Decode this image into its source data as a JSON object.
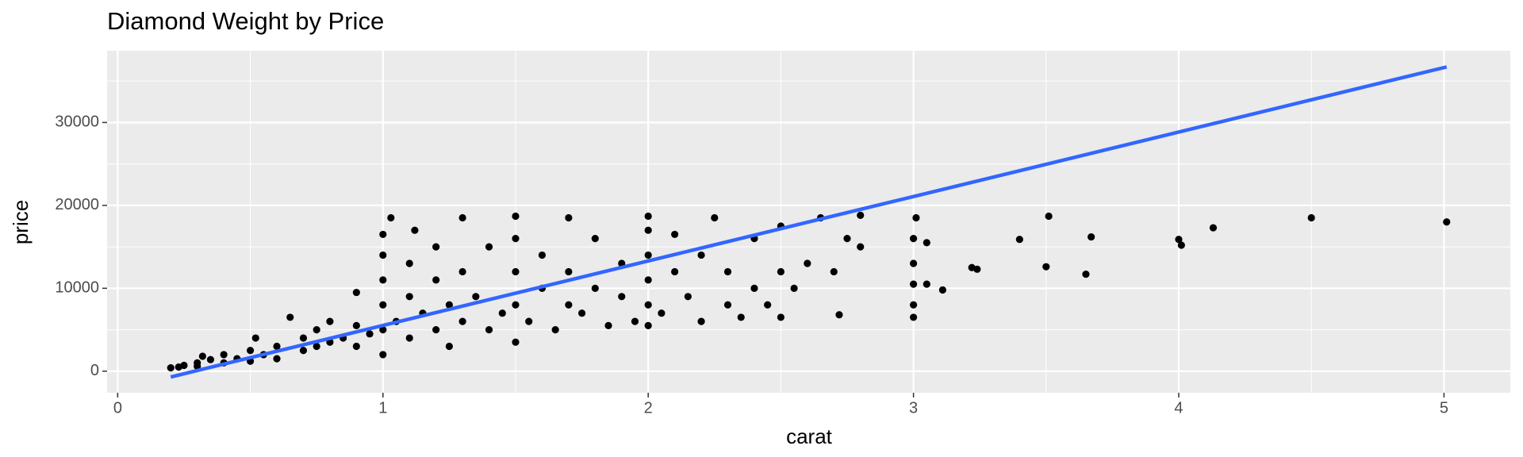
{
  "chart_data": {
    "type": "scatter",
    "title": "Diamond Weight by Price",
    "x_label": "carat",
    "y_label": "price",
    "x": [
      0.2,
      0.23,
      0.25,
      0.3,
      0.3,
      0.32,
      0.35,
      0.4,
      0.4,
      0.45,
      0.5,
      0.5,
      0.52,
      0.55,
      0.6,
      0.6,
      0.65,
      0.7,
      0.7,
      0.75,
      0.75,
      0.8,
      0.8,
      0.85,
      0.9,
      0.9,
      0.9,
      0.95,
      1.0,
      1.0,
      1.0,
      1.0,
      1.0,
      1.0,
      1.03,
      1.05,
      1.1,
      1.1,
      1.1,
      1.12,
      1.15,
      1.2,
      1.2,
      1.2,
      1.25,
      1.25,
      1.3,
      1.3,
      1.3,
      1.35,
      1.4,
      1.4,
      1.45,
      1.5,
      1.5,
      1.5,
      1.5,
      1.5,
      1.55,
      1.6,
      1.6,
      1.65,
      1.7,
      1.7,
      1.7,
      1.75,
      1.8,
      1.8,
      1.85,
      1.9,
      1.9,
      1.95,
      2.0,
      2.0,
      2.0,
      2.0,
      2.0,
      2.0,
      2.05,
      2.1,
      2.1,
      2.15,
      2.2,
      2.2,
      2.25,
      2.3,
      2.3,
      2.35,
      2.4,
      2.4,
      2.45,
      2.5,
      2.5,
      2.5,
      2.55,
      2.6,
      2.65,
      2.7,
      2.72,
      2.75,
      2.8,
      2.8,
      3.0,
      3.0,
      3.0,
      3.0,
      3.0,
      3.01,
      3.05,
      3.05,
      3.11,
      3.22,
      3.24,
      3.4,
      3.5,
      3.51,
      3.65,
      3.67,
      4.0,
      4.01,
      4.13,
      4.5,
      5.01
    ],
    "y": [
      400,
      500,
      700,
      600,
      1000,
      1800,
      1400,
      1000,
      2000,
      1500,
      1200,
      2500,
      4000,
      2000,
      1500,
      3000,
      6500,
      2500,
      4000,
      3000,
      5000,
      3500,
      6000,
      4000,
      3000,
      5500,
      9500,
      4500,
      2000,
      5000,
      8000,
      11000,
      14000,
      16500,
      18500,
      6000,
      4000,
      9000,
      13000,
      17000,
      7000,
      5000,
      11000,
      15000,
      3000,
      8000,
      6000,
      12000,
      18500,
      9000,
      5000,
      15000,
      7000,
      3500,
      8000,
      12000,
      16000,
      18700,
      6000,
      10000,
      14000,
      5000,
      8000,
      12000,
      18500,
      7000,
      10000,
      16000,
      5500,
      9000,
      13000,
      6000,
      5500,
      8000,
      11000,
      14000,
      17000,
      18700,
      7000,
      12000,
      16500,
      9000,
      6000,
      14000,
      18500,
      8000,
      12000,
      6500,
      10000,
      16000,
      8000,
      6500,
      12000,
      17500,
      10000,
      13000,
      18500,
      12000,
      6800,
      16000,
      15000,
      18800,
      6500,
      8000,
      10500,
      13000,
      16000,
      18500,
      15500,
      10500,
      9800,
      12500,
      12300,
      15900,
      12600,
      18700,
      11700,
      16200,
      15900,
      15200,
      17300,
      18500,
      18000
    ],
    "color": "#000000",
    "trend": {
      "x": [
        0.2,
        5.01
      ],
      "y": [
        -700,
        36700
      ],
      "color": "#3366ff"
    },
    "xlim": [
      -0.04,
      5.25
    ],
    "ylim": [
      -2600,
      38650
    ],
    "xticks": [
      0,
      1,
      2,
      3,
      4,
      5
    ],
    "yticks": [
      0,
      10000,
      20000,
      30000
    ],
    "x_minor_grid": [
      0.5,
      1.5,
      2.5,
      3.5,
      4.5
    ],
    "y_minor_grid": [
      5000,
      15000,
      25000,
      35000
    ],
    "grid": true
  }
}
